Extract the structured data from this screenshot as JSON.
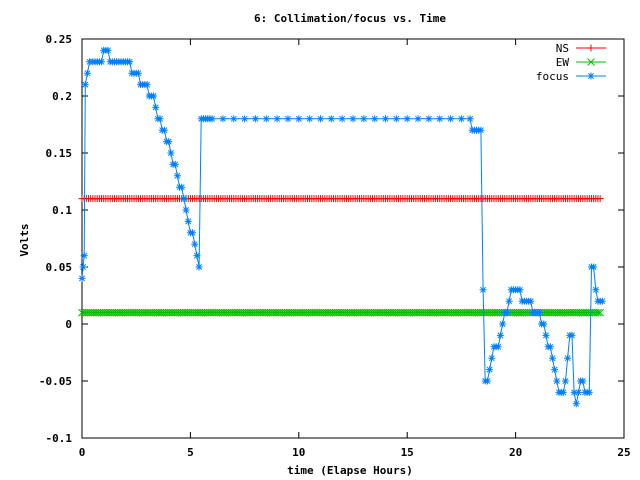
{
  "chart_data": {
    "type": "line",
    "title": "6: Collimation/focus vs. Time",
    "xlabel": "time (Elapse Hours)",
    "ylabel": "Volts",
    "xlim": [
      0,
      25
    ],
    "ylim": [
      -0.1,
      0.25
    ],
    "x_ticks": [
      0,
      5,
      10,
      15,
      20,
      25
    ],
    "x_tick_labels": [
      "0",
      "5",
      "10",
      "15",
      "20",
      "25"
    ],
    "y_ticks": [
      -0.1,
      -0.05,
      0,
      0.05,
      0.1,
      0.15,
      0.2,
      0.25
    ],
    "y_tick_labels": [
      "-0.1",
      "-0.05",
      "0",
      "0.05",
      "0.1",
      "0.15",
      "0.2",
      "0.25"
    ],
    "legend_position": "top-right",
    "series": [
      {
        "name": "NS",
        "color": "#ff0000",
        "marker": "plus",
        "x_start": 0.0,
        "x_end": 23.9,
        "x_step": 0.1,
        "constant_value": 0.11
      },
      {
        "name": "EW",
        "color": "#00c000",
        "marker": "cross",
        "x_start": 0.0,
        "x_end": 23.9,
        "x_step": 0.1,
        "constant_value": 0.01
      },
      {
        "name": "focus",
        "color": "#0080ff",
        "marker": "star",
        "points": [
          [
            0.0,
            0.04
          ],
          [
            0.05,
            0.05
          ],
          [
            0.1,
            0.06
          ],
          [
            0.15,
            0.21
          ],
          [
            0.25,
            0.22
          ],
          [
            0.35,
            0.23
          ],
          [
            0.5,
            0.23
          ],
          [
            0.6,
            0.23
          ],
          [
            0.7,
            0.23
          ],
          [
            0.8,
            0.23
          ],
          [
            0.9,
            0.23
          ],
          [
            1.0,
            0.24
          ],
          [
            1.1,
            0.24
          ],
          [
            1.2,
            0.24
          ],
          [
            1.3,
            0.23
          ],
          [
            1.4,
            0.23
          ],
          [
            1.5,
            0.23
          ],
          [
            1.6,
            0.23
          ],
          [
            1.7,
            0.23
          ],
          [
            1.8,
            0.23
          ],
          [
            1.9,
            0.23
          ],
          [
            2.0,
            0.23
          ],
          [
            2.1,
            0.23
          ],
          [
            2.2,
            0.23
          ],
          [
            2.3,
            0.22
          ],
          [
            2.4,
            0.22
          ],
          [
            2.5,
            0.22
          ],
          [
            2.6,
            0.22
          ],
          [
            2.7,
            0.21
          ],
          [
            2.8,
            0.21
          ],
          [
            2.9,
            0.21
          ],
          [
            3.0,
            0.21
          ],
          [
            3.1,
            0.2
          ],
          [
            3.2,
            0.2
          ],
          [
            3.3,
            0.2
          ],
          [
            3.4,
            0.19
          ],
          [
            3.5,
            0.18
          ],
          [
            3.6,
            0.18
          ],
          [
            3.7,
            0.17
          ],
          [
            3.8,
            0.17
          ],
          [
            3.9,
            0.16
          ],
          [
            4.0,
            0.16
          ],
          [
            4.1,
            0.15
          ],
          [
            4.2,
            0.14
          ],
          [
            4.3,
            0.14
          ],
          [
            4.4,
            0.13
          ],
          [
            4.5,
            0.12
          ],
          [
            4.6,
            0.12
          ],
          [
            4.7,
            0.11
          ],
          [
            4.8,
            0.1
          ],
          [
            4.9,
            0.09
          ],
          [
            5.0,
            0.08
          ],
          [
            5.1,
            0.08
          ],
          [
            5.2,
            0.07
          ],
          [
            5.3,
            0.06
          ],
          [
            5.4,
            0.05
          ],
          [
            5.5,
            0.18
          ],
          [
            5.6,
            0.18
          ],
          [
            5.7,
            0.18
          ],
          [
            5.8,
            0.18
          ],
          [
            5.9,
            0.18
          ],
          [
            6.0,
            0.18
          ],
          [
            6.5,
            0.18
          ],
          [
            7.0,
            0.18
          ],
          [
            7.5,
            0.18
          ],
          [
            8.0,
            0.18
          ],
          [
            8.5,
            0.18
          ],
          [
            9.0,
            0.18
          ],
          [
            9.5,
            0.18
          ],
          [
            10.0,
            0.18
          ],
          [
            10.5,
            0.18
          ],
          [
            11.0,
            0.18
          ],
          [
            11.5,
            0.18
          ],
          [
            12.0,
            0.18
          ],
          [
            12.5,
            0.18
          ],
          [
            13.0,
            0.18
          ],
          [
            13.5,
            0.18
          ],
          [
            14.0,
            0.18
          ],
          [
            14.5,
            0.18
          ],
          [
            15.0,
            0.18
          ],
          [
            15.5,
            0.18
          ],
          [
            16.0,
            0.18
          ],
          [
            16.5,
            0.18
          ],
          [
            17.0,
            0.18
          ],
          [
            17.5,
            0.18
          ],
          [
            17.9,
            0.18
          ],
          [
            18.0,
            0.17
          ],
          [
            18.1,
            0.17
          ],
          [
            18.2,
            0.17
          ],
          [
            18.3,
            0.17
          ],
          [
            18.4,
            0.17
          ],
          [
            18.5,
            0.03
          ],
          [
            18.6,
            -0.05
          ],
          [
            18.7,
            -0.05
          ],
          [
            18.8,
            -0.04
          ],
          [
            18.9,
            -0.03
          ],
          [
            19.0,
            -0.02
          ],
          [
            19.1,
            -0.02
          ],
          [
            19.2,
            -0.02
          ],
          [
            19.3,
            -0.01
          ],
          [
            19.4,
            0.0
          ],
          [
            19.5,
            0.01
          ],
          [
            19.6,
            0.01
          ],
          [
            19.7,
            0.02
          ],
          [
            19.8,
            0.03
          ],
          [
            19.9,
            0.03
          ],
          [
            20.0,
            0.03
          ],
          [
            20.1,
            0.03
          ],
          [
            20.2,
            0.03
          ],
          [
            20.3,
            0.02
          ],
          [
            20.4,
            0.02
          ],
          [
            20.5,
            0.02
          ],
          [
            20.6,
            0.02
          ],
          [
            20.7,
            0.02
          ],
          [
            20.8,
            0.01
          ],
          [
            20.9,
            0.01
          ],
          [
            21.0,
            0.01
          ],
          [
            21.1,
            0.01
          ],
          [
            21.2,
            0.0
          ],
          [
            21.3,
            0.0
          ],
          [
            21.4,
            -0.01
          ],
          [
            21.5,
            -0.02
          ],
          [
            21.6,
            -0.02
          ],
          [
            21.7,
            -0.03
          ],
          [
            21.8,
            -0.04
          ],
          [
            21.9,
            -0.05
          ],
          [
            22.0,
            -0.06
          ],
          [
            22.1,
            -0.06
          ],
          [
            22.2,
            -0.06
          ],
          [
            22.3,
            -0.05
          ],
          [
            22.4,
            -0.03
          ],
          [
            22.5,
            -0.01
          ],
          [
            22.6,
            -0.01
          ],
          [
            22.7,
            -0.06
          ],
          [
            22.8,
            -0.07
          ],
          [
            22.9,
            -0.06
          ],
          [
            23.0,
            -0.05
          ],
          [
            23.1,
            -0.05
          ],
          [
            23.2,
            -0.06
          ],
          [
            23.3,
            -0.06
          ],
          [
            23.4,
            -0.06
          ],
          [
            23.5,
            0.05
          ],
          [
            23.6,
            0.05
          ],
          [
            23.7,
            0.03
          ],
          [
            23.8,
            0.02
          ],
          [
            23.9,
            0.02
          ],
          [
            24.0,
            0.02
          ]
        ]
      }
    ]
  }
}
